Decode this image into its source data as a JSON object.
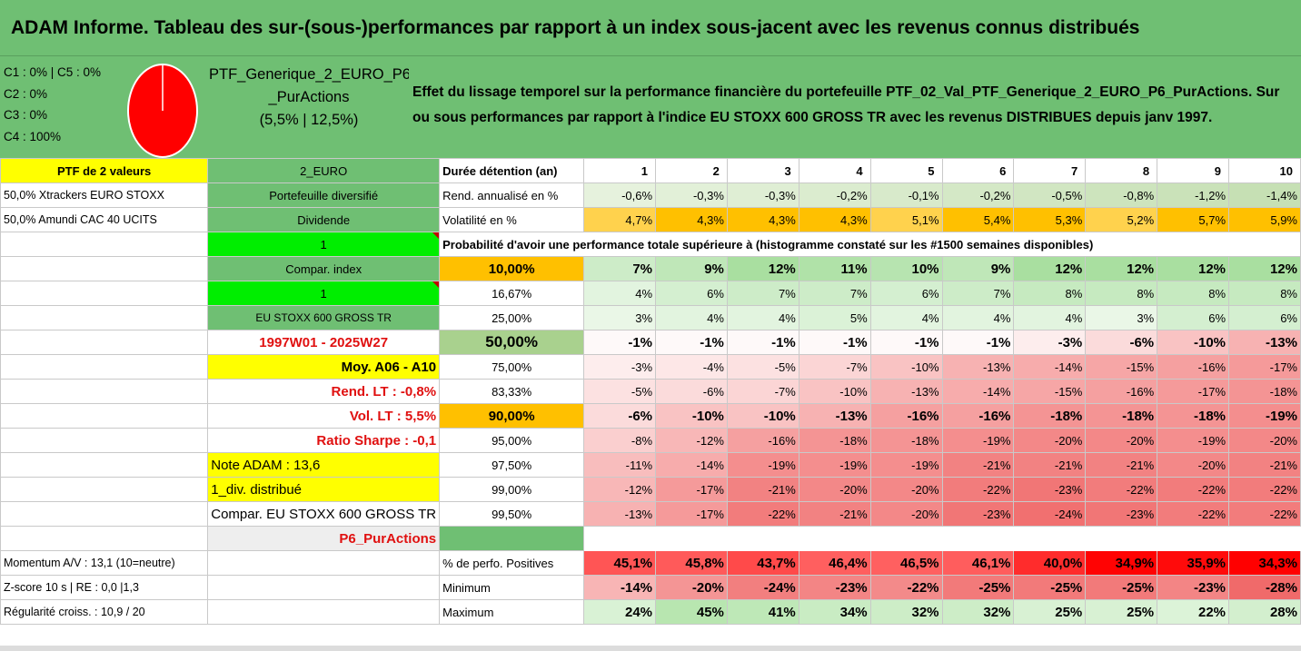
{
  "title": "ADAM Informe. Tableau des sur-(sous-)performances par rapport à un index sous-jacent avec les revenus connus distribués",
  "legend": {
    "lines": [
      "C1 : 0% | C5 : 0%",
      "C2 : 0%",
      "C3 : 0%",
      "C4 : 100%"
    ],
    "pie_color": "#ff0000",
    "pie_share_c4": 100
  },
  "ptf_box": {
    "line1": "PTF_Generique_2_EURO_P6",
    "line2": "_PurActions",
    "line3": "(5,5% | 12,5%)"
  },
  "description": "Effet du lissage temporel sur la performance financière du portefeuille PTF_02_Val_PTF_Generique_2_EURO_P6_PurActions. Sur ou sous performances par rapport à l'indice EU STOXX 600 GROSS TR avec les revenus DISTRIBUES depuis janv 1997.",
  "header_row": {
    "a": "PTF de 2 valeurs",
    "b": "2_EURO",
    "c": "Durée détention (an)",
    "years": [
      "1",
      "2",
      "3",
      "4",
      "5",
      "6",
      "7",
      "8",
      "9",
      "10"
    ]
  },
  "rend_row": {
    "a": "50,0% Xtrackers EURO STOXX",
    "b": "Portefeuille diversifié",
    "c": "Rend. annualisé en %",
    "values": [
      "-0,6%",
      "-0,3%",
      "-0,3%",
      "-0,2%",
      "-0,1%",
      "-0,2%",
      "-0,5%",
      "-0,8%",
      "-1,2%",
      "-1,4%"
    ]
  },
  "vol_row": {
    "a": "50,0% Amundi CAC 40 UCITS",
    "b": "Dividende",
    "c": "Volatilité en %",
    "values": [
      "4,7%",
      "4,3%",
      "4,3%",
      "4,3%",
      "5,1%",
      "5,4%",
      "5,3%",
      "5,2%",
      "5,7%",
      "5,9%"
    ]
  },
  "prob_row": {
    "b": "1",
    "text": "Probabilité d'avoir une performance totale supérieure à (histogramme constaté sur les #1500 semaines disponibles)"
  },
  "percentile_rows": [
    {
      "b": "Compar. index",
      "c": "10,00%",
      "values": [
        "7%",
        "9%",
        "12%",
        "11%",
        "10%",
        "9%",
        "12%",
        "12%",
        "12%",
        "12%"
      ]
    },
    {
      "b": "1",
      "c": "16,67%",
      "values": [
        "4%",
        "6%",
        "7%",
        "7%",
        "6%",
        "7%",
        "8%",
        "8%",
        "8%",
        "8%"
      ]
    },
    {
      "b": "EU STOXX 600 GROSS TR",
      "c": "25,00%",
      "values": [
        "3%",
        "4%",
        "4%",
        "5%",
        "4%",
        "4%",
        "4%",
        "3%",
        "6%",
        "6%"
      ]
    },
    {
      "b": "1997W01 - 2025W27",
      "c": "50,00%",
      "values": [
        "-1%",
        "-1%",
        "-1%",
        "-1%",
        "-1%",
        "-1%",
        "-3%",
        "-6%",
        "-10%",
        "-13%"
      ]
    },
    {
      "b": "Moy. A06 - A10",
      "c": "75,00%",
      "values": [
        "-3%",
        "-4%",
        "-5%",
        "-7%",
        "-10%",
        "-13%",
        "-14%",
        "-15%",
        "-16%",
        "-17%"
      ]
    },
    {
      "b": "Rend. LT : -0,8%",
      "c": "83,33%",
      "values": [
        "-5%",
        "-6%",
        "-7%",
        "-10%",
        "-13%",
        "-14%",
        "-15%",
        "-16%",
        "-17%",
        "-18%"
      ]
    },
    {
      "b": "Vol. LT : 5,5%",
      "c": "90,00%",
      "values": [
        "-6%",
        "-10%",
        "-10%",
        "-13%",
        "-16%",
        "-16%",
        "-18%",
        "-18%",
        "-18%",
        "-19%"
      ]
    },
    {
      "b": "Ratio Sharpe : -0,1",
      "c": "95,00%",
      "values": [
        "-8%",
        "-12%",
        "-16%",
        "-18%",
        "-18%",
        "-19%",
        "-20%",
        "-20%",
        "-19%",
        "-20%"
      ]
    },
    {
      "b": "Note ADAM : 13,6",
      "c": "97,50%",
      "values": [
        "-11%",
        "-14%",
        "-19%",
        "-19%",
        "-19%",
        "-21%",
        "-21%",
        "-21%",
        "-20%",
        "-21%"
      ]
    },
    {
      "b": "1_div. distribué",
      "c": "99,00%",
      "values": [
        "-12%",
        "-17%",
        "-21%",
        "-20%",
        "-20%",
        "-22%",
        "-23%",
        "-22%",
        "-22%",
        "-22%"
      ]
    },
    {
      "b": "Compar. EU STOXX 600 GROSS TR",
      "c": "99,50%",
      "values": [
        "-13%",
        "-17%",
        "-22%",
        "-21%",
        "-20%",
        "-23%",
        "-24%",
        "-23%",
        "-22%",
        "-22%"
      ]
    }
  ],
  "p6_row": {
    "b": "P6_PurActions"
  },
  "stats_rows": [
    {
      "a": "Momentum A/V : 13,1 (10=neutre)",
      "c": "% de perfo. Positives",
      "values": [
        "45,1%",
        "45,8%",
        "43,7%",
        "46,4%",
        "46,5%",
        "46,1%",
        "40,0%",
        "34,9%",
        "35,9%",
        "34,3%"
      ]
    },
    {
      "a": "Z-score 10 s | RE : 0,0 |1,3",
      "c": "Minimum",
      "values": [
        "-14%",
        "-20%",
        "-24%",
        "-23%",
        "-22%",
        "-25%",
        "-25%",
        "-25%",
        "-23%",
        "-28%"
      ]
    },
    {
      "a": "Régularité croiss. : 10,9 / 20",
      "c": "Maximum",
      "values": [
        "24%",
        "45%",
        "41%",
        "34%",
        "32%",
        "32%",
        "25%",
        "25%",
        "22%",
        "28%"
      ]
    }
  ],
  "colors": {
    "title_green": "#6fbf73",
    "highlight_yellow": "#ffff00",
    "highlight_orange": "#ffc000",
    "bright_green": "#00ee00",
    "label_red": "#e01010"
  }
}
